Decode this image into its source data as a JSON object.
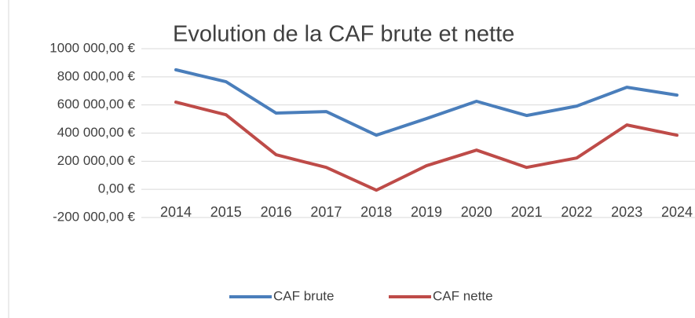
{
  "chart_data": {
    "type": "line",
    "title": "Evolution de la CAF brute et nette",
    "categories": [
      "2014",
      "2015",
      "2016",
      "2017",
      "2018",
      "2019",
      "2020",
      "2021",
      "2022",
      "2023",
      "2024"
    ],
    "series": [
      {
        "name": "CAF brute",
        "color": "#4a7ebb",
        "values": [
          850000,
          765000,
          542000,
          553000,
          385000,
          503000,
          626000,
          525000,
          592000,
          726000,
          670000
        ]
      },
      {
        "name": "CAF nette",
        "color": "#be4b48",
        "values": [
          620000,
          530000,
          246000,
          156000,
          -6000,
          168000,
          279000,
          156000,
          223000,
          458000,
          385000
        ]
      }
    ],
    "ylim": [
      -200000,
      1000000
    ],
    "yticks": [
      {
        "value": -200000,
        "label": "-200 000,00 €"
      },
      {
        "value": 0,
        "label": "0,00 €"
      },
      {
        "value": 200000,
        "label": "200 000,00 €"
      },
      {
        "value": 400000,
        "label": "400 000,00 €"
      },
      {
        "value": 600000,
        "label": "600 000,00 €"
      },
      {
        "value": 800000,
        "label": "800 000,00 €"
      },
      {
        "value": 1000000,
        "label": "1000 000,00 €"
      }
    ],
    "grid": true,
    "legend": "bottom"
  }
}
